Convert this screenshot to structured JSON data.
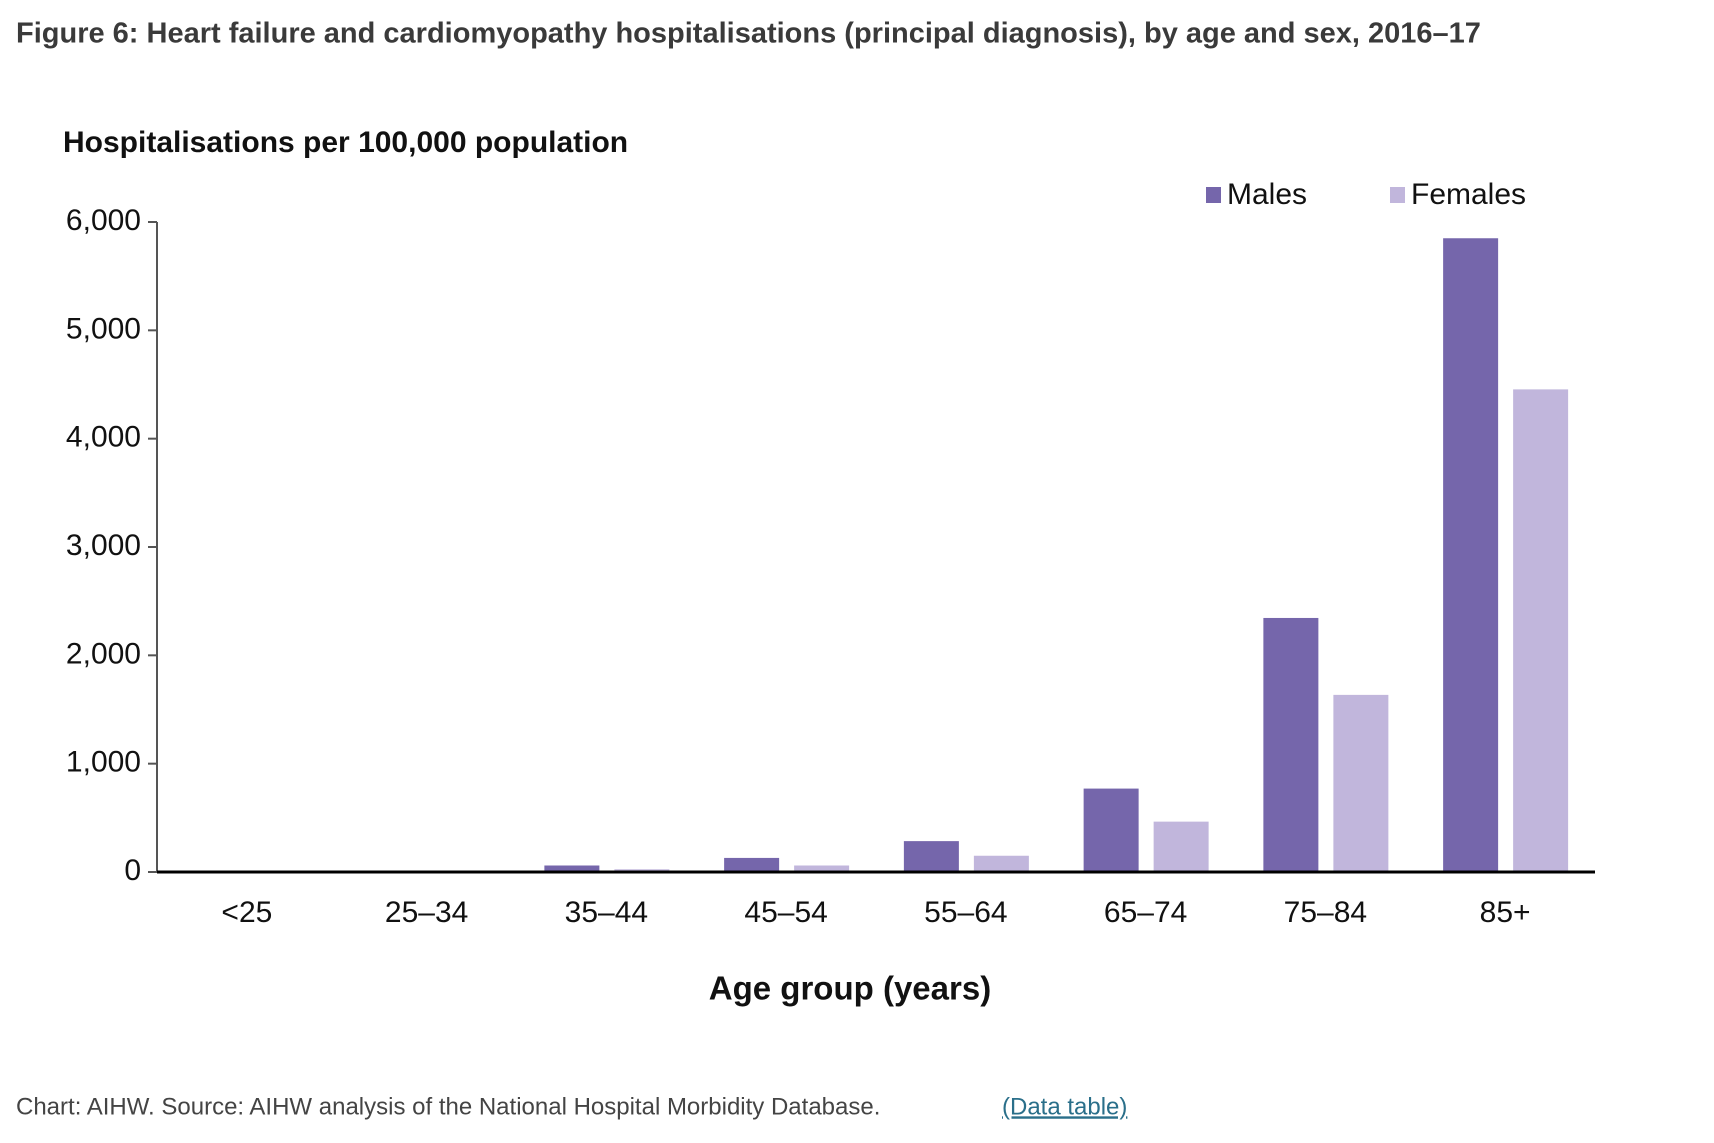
{
  "chart_data": {
    "type": "bar",
    "title": "Figure 6: Heart failure and cardiomyopathy hospitalisations (principal diagnosis), by age and sex, 2016–17",
    "y_label": "Hospitalisations per 100,000 population",
    "x_label": "Age group (years)",
    "categories": [
      "<25",
      "25–34",
      "35–44",
      "45–54",
      "55–64",
      "65–74",
      "75–84",
      "85+"
    ],
    "series": [
      {
        "name": "Males",
        "color": "#7566ab",
        "values": [
          2,
          5,
          60,
          130,
          285,
          770,
          2345,
          5850
        ]
      },
      {
        "name": "Females",
        "color": "#c1b6dc",
        "values": [
          2,
          3,
          25,
          60,
          150,
          465,
          1635,
          4455
        ]
      }
    ],
    "ylim": [
      0,
      6000
    ],
    "yticks": [
      0,
      {
        "value": 1000,
        "label": "1,000"
      },
      {
        "value": 2000,
        "label": "2,000"
      },
      {
        "value": 3000,
        "label": "3,000"
      },
      {
        "value": 4000,
        "label": "4,000"
      },
      {
        "value": 5000,
        "label": "5,000"
      },
      {
        "value": 6000,
        "label": "6,000"
      }
    ],
    "grid": false,
    "legend": "top-right"
  },
  "caption": "Chart: AIHW. Source: AIHW analysis of the National Hospital Morbidity Database.",
  "link": "(Data table)"
}
